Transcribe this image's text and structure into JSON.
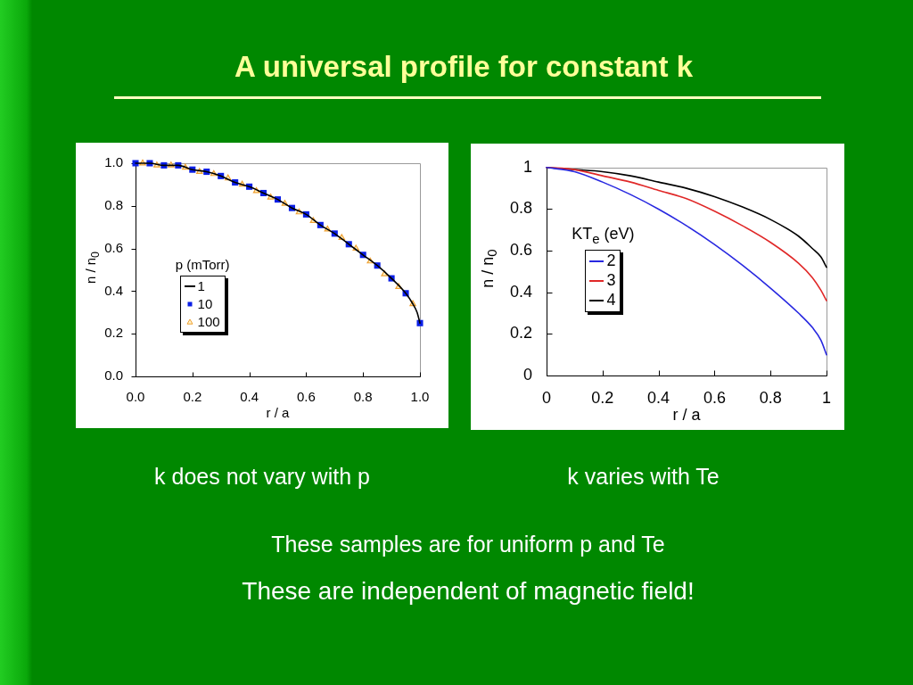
{
  "chart_data": [
    {
      "type": "other",
      "title": "A universal profile for constant k"
    },
    {
      "type": "line",
      "xlabel": "r / a",
      "ylabel": "n / n$_{0}$",
      "legend_title": "p (mTorr)",
      "legend": "left",
      "annotations": [
        "k does not vary with p"
      ],
      "xlim": [
        0,
        1
      ],
      "ylim": [
        0,
        1
      ],
      "xticks": [
        {
          "value": 0,
          "label": "0.0"
        },
        0.2,
        0.4,
        0.6,
        0.8,
        {
          "value": 1,
          "label": "1.0"
        }
      ],
      "yticks": [
        {
          "value": 0,
          "label": "0.0"
        },
        0.2,
        0.4,
        0.6,
        0.8,
        {
          "value": 1,
          "label": "1.0"
        }
      ],
      "series": [
        {
          "name": "1",
          "type": "line",
          "marker": "none",
          "color": "#000000",
          "x": [
            0,
            0.05,
            0.1,
            0.15,
            0.2,
            0.25,
            0.3,
            0.35,
            0.4,
            0.45,
            0.5,
            0.55,
            0.6,
            0.65,
            0.7,
            0.75,
            0.8,
            0.85,
            0.9,
            0.95,
            0.975,
            0.99,
            1
          ],
          "values": [
            1.0,
            1.0,
            0.99,
            0.99,
            0.97,
            0.96,
            0.94,
            0.91,
            0.89,
            0.86,
            0.83,
            0.79,
            0.76,
            0.71,
            0.67,
            0.62,
            0.57,
            0.52,
            0.46,
            0.39,
            0.34,
            0.3,
            0.25
          ]
        },
        {
          "name": "10",
          "type": "scatter",
          "marker": "square",
          "color": "#0a1ee6",
          "x": [
            0,
            0.05,
            0.1,
            0.15,
            0.2,
            0.25,
            0.3,
            0.35,
            0.4,
            0.45,
            0.5,
            0.55,
            0.6,
            0.65,
            0.7,
            0.75,
            0.8,
            0.85,
            0.9,
            0.95,
            1
          ],
          "values": [
            1.0,
            1.0,
            0.99,
            0.99,
            0.97,
            0.96,
            0.94,
            0.91,
            0.89,
            0.86,
            0.83,
            0.79,
            0.76,
            0.71,
            0.67,
            0.62,
            0.57,
            0.52,
            0.46,
            0.39,
            0.25
          ]
        },
        {
          "name": "100",
          "type": "scatter",
          "marker": "triangle",
          "color": "#f0a030",
          "x": [
            0.025,
            0.075,
            0.125,
            0.175,
            0.225,
            0.275,
            0.325,
            0.375,
            0.425,
            0.475,
            0.525,
            0.575,
            0.625,
            0.675,
            0.725,
            0.775,
            0.825,
            0.875,
            0.925,
            0.975
          ],
          "values": [
            1.0,
            0.99,
            0.99,
            0.98,
            0.96,
            0.95,
            0.93,
            0.9,
            0.87,
            0.84,
            0.81,
            0.77,
            0.73,
            0.69,
            0.65,
            0.6,
            0.54,
            0.48,
            0.42,
            0.34
          ]
        }
      ]
    },
    {
      "type": "line",
      "xlabel": "r / a",
      "ylabel": "n / n$_{0}$",
      "legend_title": "KT$_{e}$ (eV)",
      "legend": "left",
      "annotations": [
        "k varies with Te"
      ],
      "xlim": [
        0,
        1
      ],
      "ylim": [
        0,
        1
      ],
      "xticks": [
        0,
        0.2,
        0.4,
        0.6,
        0.8,
        1
      ],
      "yticks": [
        0,
        0.2,
        0.4,
        0.6,
        0.8,
        1
      ],
      "x": [
        0,
        0.1,
        0.2,
        0.3,
        0.4,
        0.5,
        0.6,
        0.7,
        0.8,
        0.9,
        0.95,
        0.98,
        1
      ],
      "series": [
        {
          "name": "2",
          "color": "#2828e0",
          "values": [
            1,
            0.98,
            0.93,
            0.87,
            0.8,
            0.72,
            0.63,
            0.53,
            0.42,
            0.3,
            0.23,
            0.17,
            0.1
          ]
        },
        {
          "name": "3",
          "color": "#e02828",
          "values": [
            1,
            0.99,
            0.96,
            0.93,
            0.89,
            0.85,
            0.79,
            0.72,
            0.64,
            0.54,
            0.47,
            0.41,
            0.36
          ]
        },
        {
          "name": "4",
          "color": "#000000",
          "values": [
            1,
            0.99,
            0.98,
            0.96,
            0.93,
            0.9,
            0.86,
            0.81,
            0.75,
            0.67,
            0.61,
            0.57,
            0.52
          ]
        }
      ]
    },
    {
      "type": "other",
      "annotations": [
        "These samples are for uniform p and Te",
        "These are independent of magnetic field!"
      ]
    }
  ]
}
